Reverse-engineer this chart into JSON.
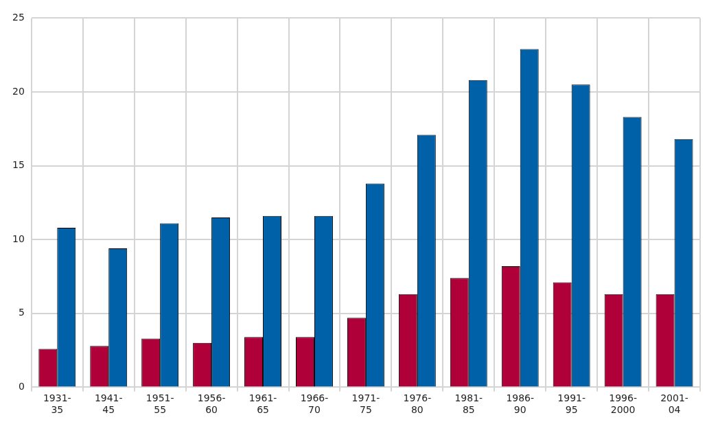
{
  "chart_data": {
    "type": "bar",
    "categories": [
      "1931-35",
      "1941-45",
      "1951-55",
      "1956-60",
      "1961-65",
      "1966-70",
      "1971-75",
      "1976-80",
      "1981-85",
      "1986-90",
      "1991-95",
      "1996-2000",
      "2001-04"
    ],
    "series": [
      {
        "color": "#b0003a",
        "values": [
          2.6,
          2.8,
          3.3,
          3.0,
          3.4,
          3.4,
          4.7,
          6.3,
          7.4,
          8.2,
          7.1,
          6.3,
          6.3
        ]
      },
      {
        "color": "#0060a8",
        "values": [
          10.8,
          9.4,
          11.1,
          11.5,
          11.6,
          11.6,
          13.8,
          17.1,
          20.8,
          22.9,
          20.5,
          18.3,
          16.8
        ]
      }
    ],
    "ylim": [
      0,
      25
    ],
    "yticks": [
      0,
      5,
      10,
      15,
      20,
      25
    ],
    "grid": true,
    "legend": false
  }
}
